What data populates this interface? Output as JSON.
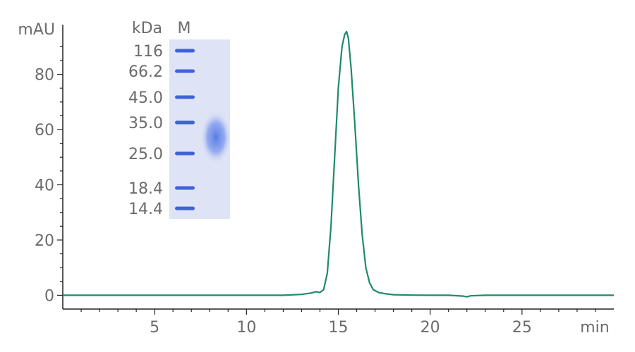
{
  "chart_data": {
    "type": "line",
    "xlabel": "min",
    "ylabel": "mAU",
    "xlim": [
      0,
      30
    ],
    "ylim": [
      -5,
      98
    ],
    "x_ticks": [
      5,
      10,
      15,
      20,
      25
    ],
    "y_ticks": [
      0,
      20,
      40,
      60,
      80
    ],
    "grid": false,
    "line_color": "#1f8a6e",
    "series": [
      {
        "x": [
          0,
          2,
          4,
          6,
          8,
          10,
          12,
          13,
          13.5,
          13.8,
          14.0,
          14.2,
          14.4,
          14.6,
          14.8,
          15.0,
          15.2,
          15.35,
          15.45,
          15.55,
          15.7,
          15.9,
          16.1,
          16.3,
          16.5,
          16.7,
          16.9,
          17.2,
          17.6,
          18,
          19,
          20,
          21,
          21.8,
          22.0,
          22.2,
          23,
          25,
          27,
          30
        ],
        "y": [
          0,
          0,
          0,
          0,
          0,
          0,
          0,
          0.3,
          0.8,
          1.3,
          1.0,
          2.0,
          8,
          25,
          50,
          75,
          90,
          94.5,
          95.5,
          93,
          82,
          62,
          40,
          22,
          10,
          4.5,
          2.0,
          1.0,
          0.5,
          0.2,
          0.05,
          0,
          0,
          -0.3,
          -0.6,
          -0.2,
          0,
          0,
          0,
          0
        ]
      }
    ],
    "inset_gel": {
      "header_unit": "kDa",
      "header_lane": "M",
      "marker_labels": [
        "116",
        "66.2",
        "45.0",
        "35.0",
        "25.0",
        "18.4",
        "14.4"
      ]
    }
  }
}
